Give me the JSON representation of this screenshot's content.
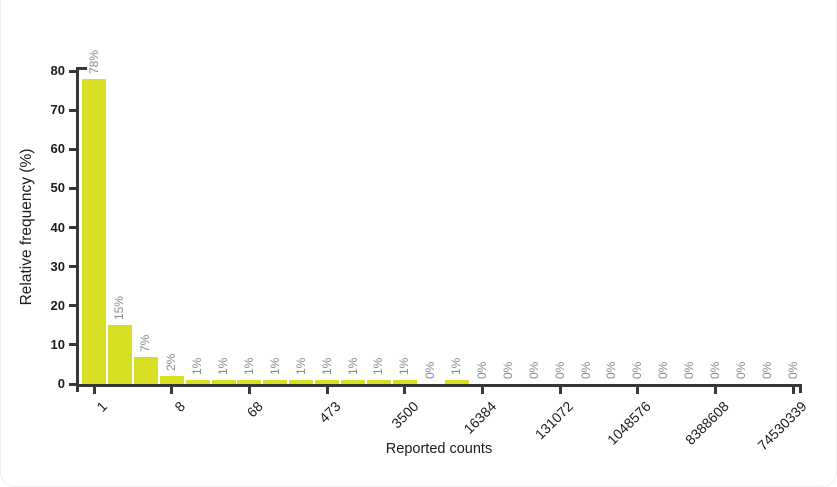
{
  "chart_data": {
    "type": "bar",
    "title": "",
    "xlabel": "Reported counts",
    "ylabel": "Relative frequency (%)",
    "grid": "off",
    "legend": "none",
    "ylim": [
      0,
      80
    ],
    "yticks": [
      0,
      10,
      20,
      30,
      40,
      50,
      60,
      70,
      80
    ],
    "x_tick_labels": [
      "1",
      "8",
      "68",
      "473",
      "3500",
      "16384",
      "131072",
      "1048576",
      "8388608",
      "74530339"
    ],
    "x_tick_every_n_bars": 3,
    "values": [
      78,
      15,
      7,
      2,
      1,
      1,
      1,
      1,
      1,
      1,
      1,
      1,
      1,
      0,
      1,
      0,
      0,
      0,
      0,
      0,
      0,
      0,
      0,
      0,
      0,
      0,
      0,
      0
    ],
    "bar_value_labels": [
      "78%",
      "15%",
      "7%",
      "2%",
      "1%",
      "1%",
      "1%",
      "1%",
      "1%",
      "1%",
      "1%",
      "1%",
      "1%",
      "0%",
      "1%",
      "0%",
      "0%",
      "0%",
      "0%",
      "0%",
      "0%",
      "0%",
      "0%",
      "0%",
      "0%",
      "0%",
      "0%",
      "0%"
    ],
    "colors": {
      "bar": "#d7df23",
      "bar_label": "#8a8a8a",
      "axis": "#373737",
      "tick_text": "#1c1c1c",
      "background": "#ffffff"
    }
  }
}
